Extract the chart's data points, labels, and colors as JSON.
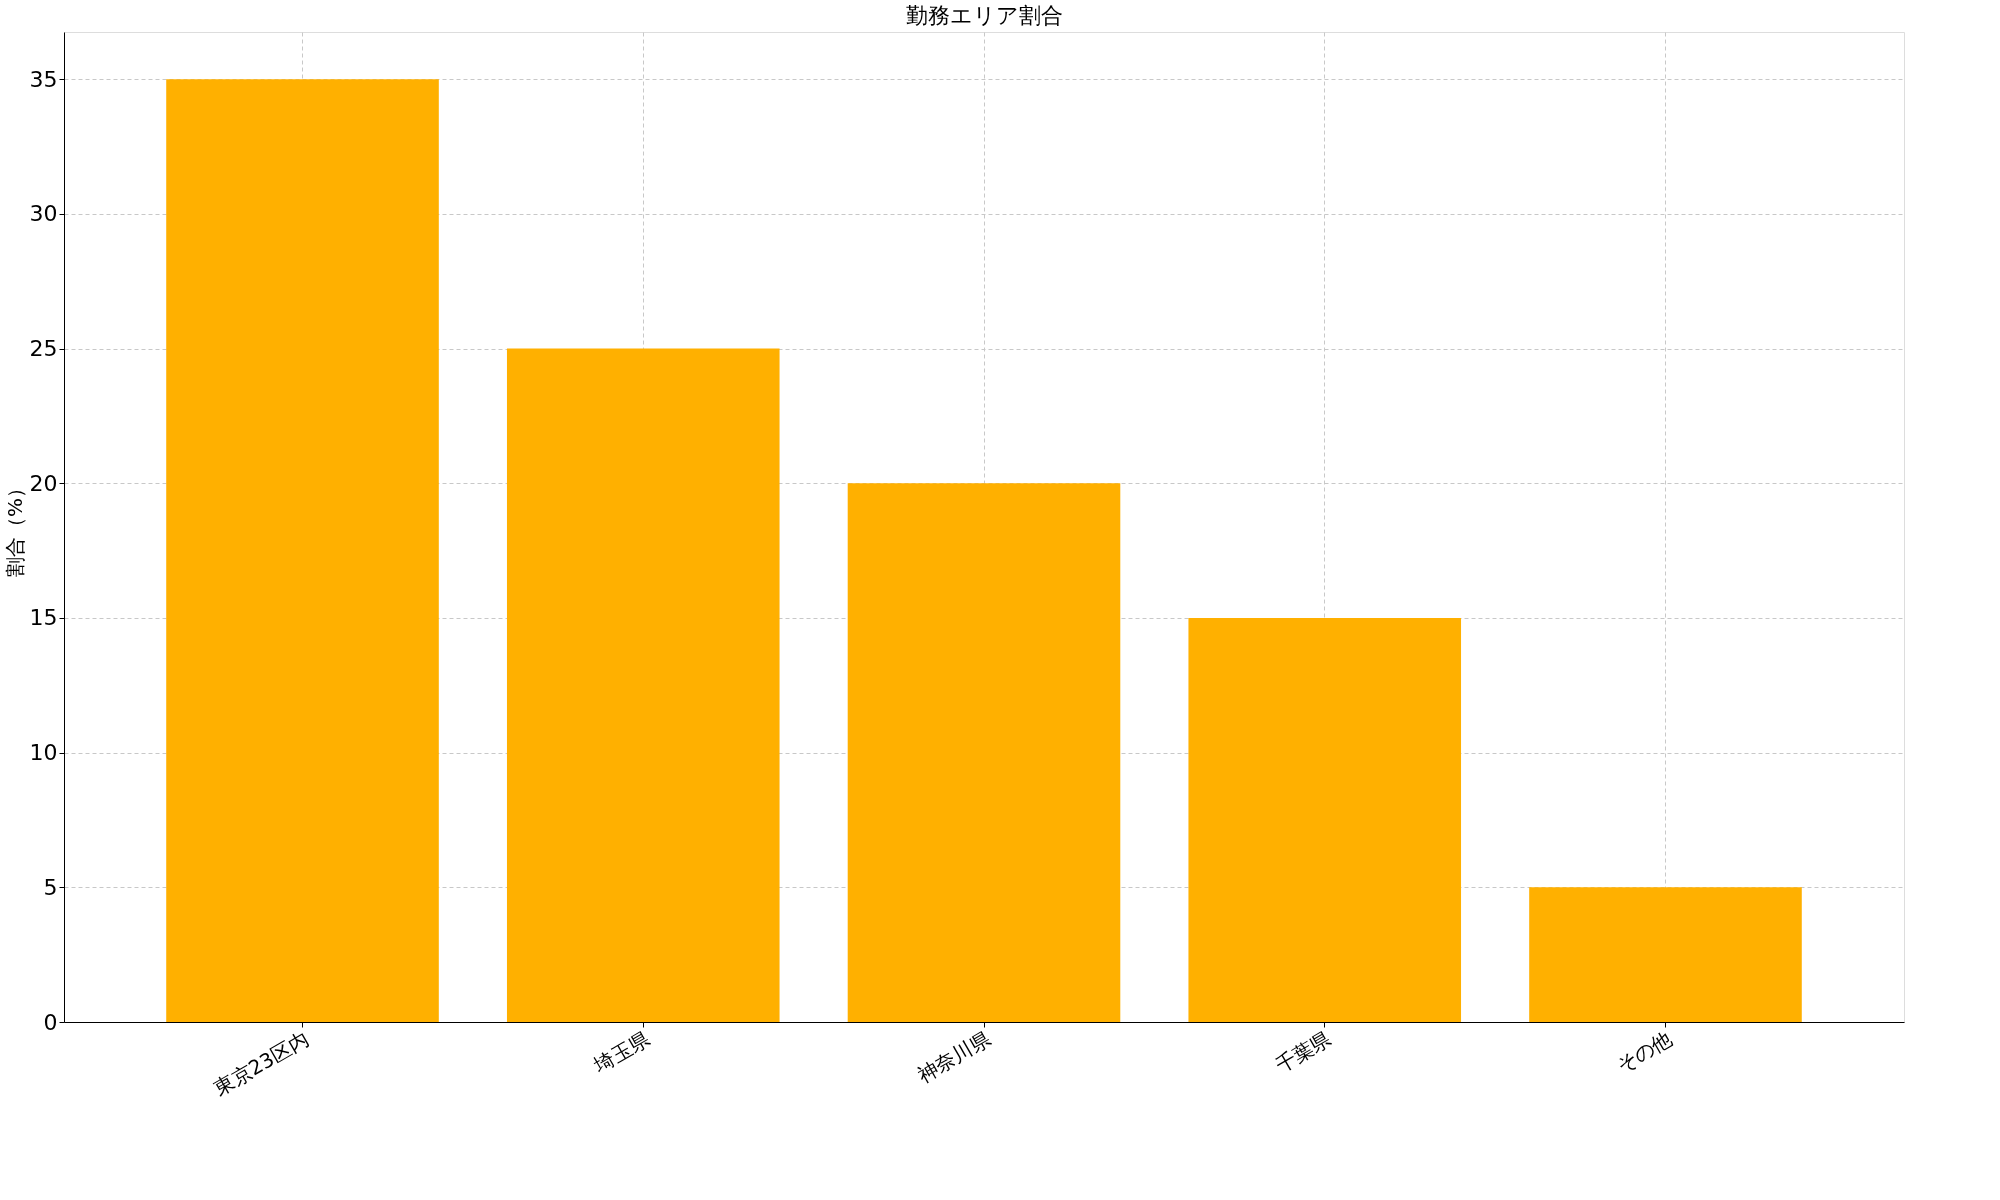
{
  "chart_data": {
    "type": "bar",
    "title": "勤務エリア割合",
    "ylabel": "割合（%）",
    "categories": [
      "東京23区内",
      "埼玉県",
      "神奈川県",
      "千葉県",
      "その他"
    ],
    "values": [
      35,
      25,
      20,
      15,
      5
    ],
    "color": "#ffb000",
    "ylim": [
      0,
      36.75
    ],
    "yticks": [
      0,
      5,
      10,
      15,
      20,
      25,
      30,
      35
    ],
    "grid": true
  }
}
